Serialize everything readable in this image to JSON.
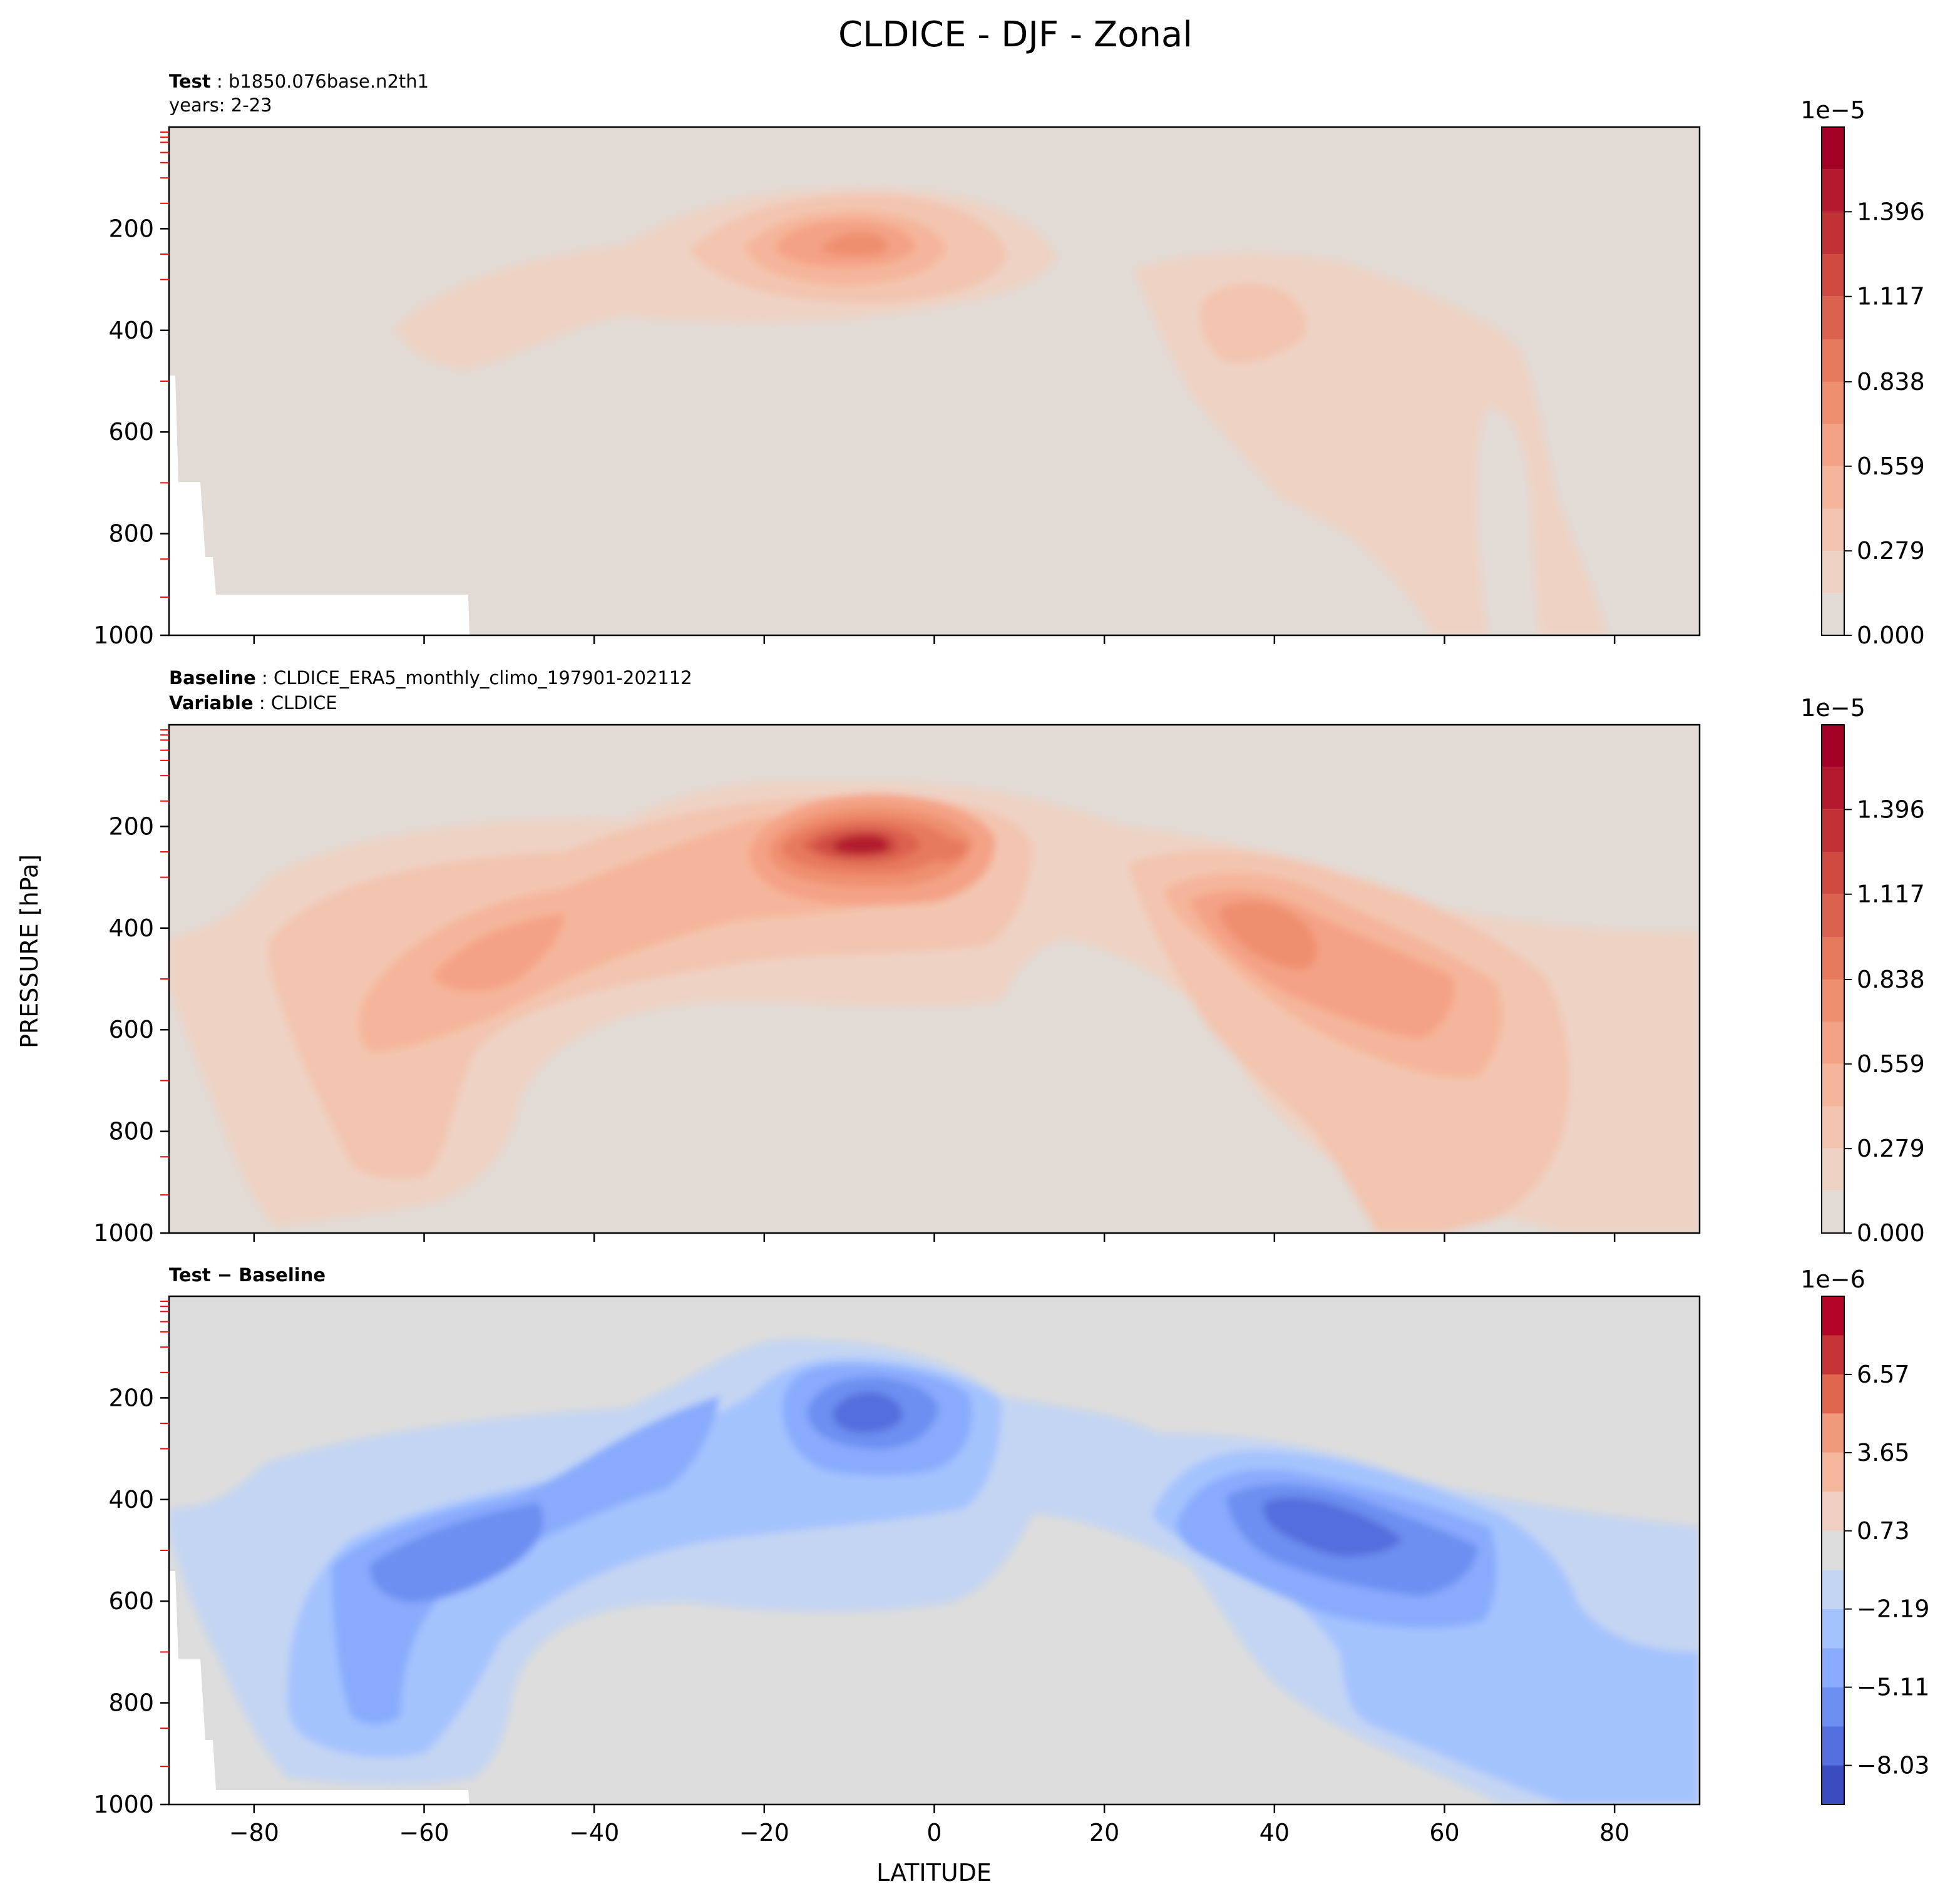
{
  "title": "CLDICE - DJF - Zonal",
  "axes": {
    "xlabel": "LATITUDE",
    "ylabel": "PRESSURE [hPa]",
    "x_ticks": [
      "−80",
      "−60",
      "−40",
      "−20",
      "0",
      "20",
      "40",
      "60",
      "80"
    ],
    "y_ticks": [
      "200",
      "400",
      "600",
      "800",
      "1000"
    ]
  },
  "panels": [
    {
      "id": "test",
      "line1": {
        "key": "Test",
        "sep": " : ",
        "value": "b1850.076base.n2th1"
      },
      "line2": "years: 2-23",
      "colorbar": {
        "offset": "1e−5",
        "ticks": [
          "0.000",
          "0.279",
          "0.559",
          "0.838",
          "1.117",
          "1.396"
        ]
      }
    },
    {
      "id": "baseline",
      "line1": {
        "key": "Baseline",
        "sep": " : ",
        "value": "CLDICE_ERA5_monthly_climo_197901-202112"
      },
      "line2": {
        "key": "Variable",
        "sep": " : ",
        "value": "CLDICE"
      },
      "colorbar": {
        "offset": "1e−5",
        "ticks": [
          "0.000",
          "0.279",
          "0.559",
          "0.838",
          "1.117",
          "1.396"
        ]
      }
    },
    {
      "id": "diff",
      "line1": {
        "key": "Test",
        "sep": " − ",
        "value": "Baseline"
      },
      "colorbar": {
        "offset": "1e−6",
        "ticks": [
          "−8.03",
          "−5.11",
          "−2.19",
          "0.73",
          "3.65",
          "6.57"
        ]
      }
    }
  ],
  "chart_data": [
    {
      "type": "contourf",
      "panel": "test",
      "x_label": "LATITUDE",
      "y_label": "PRESSURE [hPa]",
      "xlim": [
        -90,
        90
      ],
      "ylim": [
        1000,
        0
      ],
      "levels": [
        0.0,
        1.4e-06,
        2.79e-06,
        4.19e-06,
        5.59e-06,
        6.98e-06,
        8.38e-06,
        9.77e-06,
        1.12e-05,
        1.26e-05,
        1.4e-05,
        1.54e-05,
        1.68e-05
      ],
      "colors": [
        "#e2dad5",
        "#eed3c5",
        "#f3c5b0",
        "#f5b59a",
        "#f4a285",
        "#ef8f71",
        "#e7795f",
        "#dc6250",
        "#cf4b42",
        "#c13237",
        "#b31a2e",
        "#a50026"
      ],
      "masked_region": "no data near surface poleward of 55S",
      "features": [
        {
          "label": "tropical upper max",
          "lat": -8,
          "p": 230,
          "value": 7.3e-06
        },
        {
          "label": "subtropical band",
          "lat_range": [
            -62,
            15
          ],
          "p_range": [
            150,
            480
          ],
          "value": 2.8e-06
        },
        {
          "label": "NH midlatitude",
          "lat_range": [
            25,
            80
          ],
          "p_range": [
            250,
            1000
          ],
          "value": 3e-06
        },
        {
          "label": "NH core",
          "lat": 38,
          "p": 400,
          "value": 4.5e-06
        }
      ]
    },
    {
      "type": "contourf",
      "panel": "baseline",
      "x_label": "LATITUDE",
      "y_label": "PRESSURE [hPa]",
      "xlim": [
        -90,
        90
      ],
      "ylim": [
        1000,
        0
      ],
      "levels": [
        0.0,
        1.4e-06,
        2.79e-06,
        4.19e-06,
        5.59e-06,
        6.98e-06,
        8.38e-06,
        9.77e-06,
        1.12e-05,
        1.26e-05,
        1.4e-05,
        1.54e-05,
        1.68e-05
      ],
      "colors": [
        "#e2dad5",
        "#eed3c5",
        "#f3c5b0",
        "#f5b59a",
        "#f4a285",
        "#ef8f71",
        "#e7795f",
        "#dc6250",
        "#cf4b42",
        "#c13237",
        "#b31a2e",
        "#a50026"
      ],
      "features": [
        {
          "label": "tropical upper max",
          "lat": -7,
          "p": 240,
          "value": 1.5e-05
        },
        {
          "label": "SH midlatitude",
          "lat": -55,
          "p": 470,
          "value": 7.5e-06
        },
        {
          "label": "NH midlatitude",
          "lat": 40,
          "p": 430,
          "value": 8.5e-06
        },
        {
          "label": "NH lower band",
          "lat_range": [
            28,
            90
          ],
          "p_range": [
            350,
            1000
          ],
          "value": 5e-06
        }
      ]
    },
    {
      "type": "contourf",
      "panel": "diff",
      "x_label": "LATITUDE",
      "y_label": "PRESSURE [hPa]",
      "xlim": [
        -90,
        90
      ],
      "ylim": [
        1000,
        0
      ],
      "levels": [
        -9.49e-06,
        -8.03e-06,
        -6.57e-06,
        -5.11e-06,
        -3.65e-06,
        -2.19e-06,
        -7.3e-07,
        7.3e-07,
        2.19e-06,
        3.65e-06,
        5.11e-06,
        6.57e-06,
        8.03e-06,
        9.49e-06
      ],
      "colors": [
        "#3b4cc0",
        "#536edd",
        "#6c8ff1",
        "#88abfd",
        "#a4c2fe",
        "#c4d5f3",
        "#dcdcdc",
        "#f1d0c2",
        "#f6b89c",
        "#f19a7b",
        "#e0654f",
        "#c53334",
        "#b40426"
      ],
      "masked_region": "no data near surface poleward of 55S",
      "features": [
        {
          "label": "tropical upper min",
          "lat": -7,
          "p": 250,
          "value": -7.5e-06
        },
        {
          "label": "SH midlatitude min",
          "lat": -55,
          "p": 470,
          "value": -5.5e-06
        },
        {
          "label": "NH midlatitude min",
          "lat": 45,
          "p": 450,
          "value": -5.5e-06
        }
      ]
    }
  ]
}
